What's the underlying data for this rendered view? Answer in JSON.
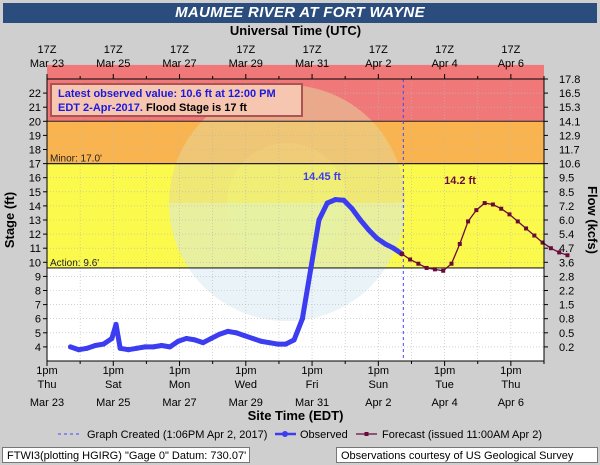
{
  "title": "MAUMEE RIVER AT FORT WAYNE",
  "top_axis": {
    "title": "Universal Time (UTC)",
    "ticks": [
      {
        "day": 0,
        "l1": "17Z",
        "l2": "Mar 23"
      },
      {
        "day": 2,
        "l1": "17Z",
        "l2": "Mar 25"
      },
      {
        "day": 4,
        "l1": "17Z",
        "l2": "Mar 27"
      },
      {
        "day": 6,
        "l1": "17Z",
        "l2": "Mar 29"
      },
      {
        "day": 8,
        "l1": "17Z",
        "l2": "Mar 31"
      },
      {
        "day": 10,
        "l1": "17Z",
        "l2": "Apr  2"
      },
      {
        "day": 12,
        "l1": "17Z",
        "l2": "Apr  4"
      },
      {
        "day": 14,
        "l1": "17Z",
        "l2": "Apr  6"
      }
    ]
  },
  "bottom_axis": {
    "title": "Site Time (EDT)",
    "ticks": [
      {
        "day": 0,
        "l1": "1pm",
        "l2": "Thu",
        "l3": "Mar 23"
      },
      {
        "day": 2,
        "l1": "1pm",
        "l2": "Sat",
        "l3": "Mar 25"
      },
      {
        "day": 4,
        "l1": "1pm",
        "l2": "Mon",
        "l3": "Mar 27"
      },
      {
        "day": 6,
        "l1": "1pm",
        "l2": "Wed",
        "l3": "Mar 29"
      },
      {
        "day": 8,
        "l1": "1pm",
        "l2": "Fri",
        "l3": "Mar 31"
      },
      {
        "day": 10,
        "l1": "1pm",
        "l2": "Sun",
        "l3": "Apr  2"
      },
      {
        "day": 12,
        "l1": "1pm",
        "l2": "Tue",
        "l3": "Apr  4"
      },
      {
        "day": 14,
        "l1": "1pm",
        "l2": "Thu",
        "l3": "Apr  6"
      }
    ]
  },
  "left_axis": {
    "title": "Stage (ft)",
    "ticks": [
      4,
      5,
      6,
      7,
      8,
      9,
      10,
      11,
      12,
      13,
      14,
      15,
      16,
      17,
      18,
      19,
      20,
      21,
      22
    ]
  },
  "right_axis": {
    "title": "Flow (kcfs)",
    "ticks": [
      {
        "stage": 4,
        "label": "0.2"
      },
      {
        "stage": 5,
        "label": "0.5"
      },
      {
        "stage": 6,
        "label": "0.8"
      },
      {
        "stage": 7,
        "label": "1.5"
      },
      {
        "stage": 8,
        "label": "2.2"
      },
      {
        "stage": 9,
        "label": "2.8"
      },
      {
        "stage": 10,
        "label": "3.6"
      },
      {
        "stage": 11,
        "label": "4.7"
      },
      {
        "stage": 12,
        "label": "5.4"
      },
      {
        "stage": 13,
        "label": "6.0"
      },
      {
        "stage": 14,
        "label": "7.2"
      },
      {
        "stage": 15,
        "label": "8.5"
      },
      {
        "stage": 16,
        "label": "9.5"
      },
      {
        "stage": 17,
        "label": "10.6"
      },
      {
        "stage": 18,
        "label": "11.7"
      },
      {
        "stage": 19,
        "label": "12.9"
      },
      {
        "stage": 20,
        "label": "14.1"
      },
      {
        "stage": 21,
        "label": "15.3"
      },
      {
        "stage": 22,
        "label": "16.5"
      },
      {
        "stage": 23,
        "label": "17.8"
      }
    ]
  },
  "thresholds": {
    "minor": {
      "value": 17,
      "label": "Minor: 17.0'"
    },
    "action": {
      "value": 9.6,
      "label": "Action: 9.6'"
    }
  },
  "bands": [
    {
      "from": 22,
      "to": 24,
      "color": "#f07878"
    },
    {
      "from": 20,
      "to": 22,
      "color": "#f07878"
    },
    {
      "from": 17,
      "to": 20,
      "color": "#f9b450"
    },
    {
      "from": 9.6,
      "to": 17,
      "color": "#fbfa4c"
    },
    {
      "from": 3,
      "to": 9.6,
      "color": "#ffffff"
    }
  ],
  "observed_box": {
    "line1": "Latest observed value: 10.6 ft at 12:00 PM",
    "line2": "EDT 2-Apr-2017.",
    "flood": "Flood Stage is 17 ft"
  },
  "annotations": {
    "observed_peak": "14.45 ft",
    "forecast_peak": "14.2 ft"
  },
  "colors": {
    "observed": "#3c3cf0",
    "forecast": "#6a0a3a",
    "threshold": "#222222",
    "created_line": "#4444ff"
  },
  "legend": {
    "created": "Graph Created (1:06PM Apr 2, 2017)",
    "observed": "Observed",
    "forecast": "Forecast (issued 11:00AM Apr 2)"
  },
  "footer": {
    "left": "FTWI3(plotting HGIRG) \"Gage 0\" Datum: 730.07'",
    "right": "Observations courtesy of US Geological Survey"
  },
  "chart_data": {
    "type": "line",
    "title": "MAUMEE RIVER AT FORT WAYNE",
    "xlabel": "Site Time (EDT)",
    "ylabel": "Stage (ft)",
    "y2label": "Flow (kcfs)",
    "xlim": [
      "2017-03-22 19:00",
      "2017-04-07 19:00"
    ],
    "ylim": [
      3,
      23
    ],
    "graph_created": "2017-04-02 13:06",
    "series": [
      {
        "name": "Observed",
        "x": [
          "2017-03-23 12:00",
          "2017-03-23 18:00",
          "2017-03-24 00:00",
          "2017-03-24 06:00",
          "2017-03-24 12:00",
          "2017-03-24 18:00",
          "2017-03-24 21:00",
          "2017-03-25 00:00",
          "2017-03-25 06:00",
          "2017-03-25 12:00",
          "2017-03-25 18:00",
          "2017-03-26 00:00",
          "2017-03-26 06:00",
          "2017-03-26 12:00",
          "2017-03-26 18:00",
          "2017-03-27 00:00",
          "2017-03-27 06:00",
          "2017-03-27 12:00",
          "2017-03-27 18:00",
          "2017-03-28 00:00",
          "2017-03-28 06:00",
          "2017-03-28 12:00",
          "2017-03-28 18:00",
          "2017-03-29 00:00",
          "2017-03-29 06:00",
          "2017-03-29 12:00",
          "2017-03-29 18:00",
          "2017-03-30 00:00",
          "2017-03-30 06:00",
          "2017-03-30 12:00",
          "2017-03-30 18:00",
          "2017-03-31 00:00",
          "2017-03-31 06:00",
          "2017-03-31 12:00",
          "2017-03-31 18:00",
          "2017-04-01 00:00",
          "2017-04-01 06:00",
          "2017-04-01 12:00",
          "2017-04-01 18:00",
          "2017-04-02 00:00",
          "2017-04-02 06:00",
          "2017-04-02 12:00"
        ],
        "y": [
          4.0,
          3.8,
          3.9,
          4.1,
          4.2,
          4.6,
          5.6,
          3.9,
          3.8,
          3.9,
          4.0,
          4.0,
          4.1,
          4.0,
          4.4,
          4.6,
          4.5,
          4.3,
          4.6,
          4.9,
          5.1,
          5.0,
          4.8,
          4.6,
          4.4,
          4.3,
          4.2,
          4.2,
          4.5,
          6.0,
          9.5,
          13.0,
          14.2,
          14.45,
          14.4,
          13.8,
          13.0,
          12.3,
          11.7,
          11.3,
          11.0,
          10.6
        ]
      },
      {
        "name": "Forecast (issued 11:00AM Apr 2)",
        "x": [
          "2017-04-02 12:00",
          "2017-04-02 18:00",
          "2017-04-03 00:00",
          "2017-04-03 06:00",
          "2017-04-03 12:00",
          "2017-04-03 18:00",
          "2017-04-04 00:00",
          "2017-04-04 06:00",
          "2017-04-04 12:00",
          "2017-04-04 18:00",
          "2017-04-05 00:00",
          "2017-04-05 06:00",
          "2017-04-05 12:00",
          "2017-04-05 18:00",
          "2017-04-06 00:00",
          "2017-04-06 06:00",
          "2017-04-06 12:00",
          "2017-04-06 18:00",
          "2017-04-07 00:00",
          "2017-04-07 06:00",
          "2017-04-07 12:00"
        ],
        "y": [
          10.6,
          10.2,
          9.9,
          9.6,
          9.5,
          9.4,
          9.9,
          11.3,
          12.9,
          13.7,
          14.2,
          14.1,
          13.8,
          13.4,
          12.9,
          12.4,
          11.9,
          11.4,
          11.0,
          10.7,
          10.5
        ]
      }
    ]
  }
}
